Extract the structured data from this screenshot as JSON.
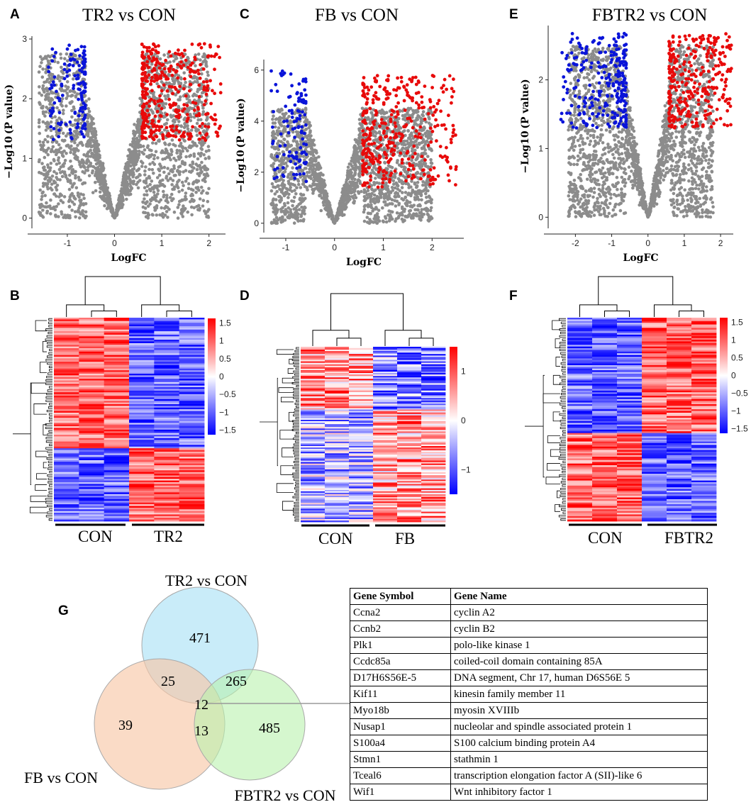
{
  "panel_letters": [
    "A",
    "B",
    "C",
    "D",
    "E",
    "F",
    "G"
  ],
  "chart_data": [
    {
      "type": "scatter",
      "panel": "A",
      "title": "TR2 vs CON",
      "xlabel": "LogFC",
      "ylabel": "−Log10 (P value)",
      "xlim": [
        -1.75,
        2.35
      ],
      "ylim": [
        -0.1,
        3.0
      ],
      "xticks": [
        -1,
        0,
        1,
        2
      ],
      "yticks": [
        0,
        1,
        2,
        3
      ],
      "series": [
        {
          "name": "down",
          "color": "#0a14d9",
          "x_range": [
            -1.4,
            -0.62
          ],
          "y_range": [
            1.3,
            2.9
          ],
          "points": 140
        },
        {
          "name": "not significant",
          "color": "#8c8c8c",
          "x_range": [
            -1.6,
            2.0
          ],
          "y_range": [
            0,
            2.9
          ],
          "points": 2200
        },
        {
          "name": "up",
          "color": "#e80a0a",
          "x_range": [
            0.58,
            2.25
          ],
          "y_range": [
            1.3,
            2.92
          ],
          "points": 360
        }
      ]
    },
    {
      "type": "scatter",
      "panel": "C",
      "title": "FB vs CON",
      "xlabel": "LogFC",
      "ylabel": "−Log10 (P value)",
      "xlim": [
        -1.45,
        2.65
      ],
      "ylim": [
        -0.2,
        6.3
      ],
      "xticks": [
        -1,
        0,
        1,
        2
      ],
      "yticks": [
        0,
        2,
        4,
        6
      ],
      "series": [
        {
          "name": "down",
          "color": "#0a14d9",
          "x_range": [
            -1.3,
            -0.58
          ],
          "y_range": [
            1.5,
            6.0
          ],
          "points": 110
        },
        {
          "name": "not significant",
          "color": "#8c8c8c",
          "x_range": [
            -1.3,
            2.0
          ],
          "y_range": [
            0,
            4.5
          ],
          "points": 2200
        },
        {
          "name": "up",
          "color": "#e80a0a",
          "x_range": [
            0.58,
            2.5
          ],
          "y_range": [
            1.4,
            5.8
          ],
          "points": 380
        }
      ]
    },
    {
      "type": "scatter",
      "panel": "E",
      "title": "FBTR2 vs CON",
      "xlabel": "LogFC",
      "ylabel": "−Log10 (P value)",
      "xlim": [
        -2.75,
        2.35
      ],
      "ylim": [
        -0.1,
        2.75
      ],
      "xticks": [
        -2,
        -1,
        0,
        1,
        2
      ],
      "yticks": [
        0,
        1,
        2
      ],
      "series": [
        {
          "name": "down",
          "color": "#0a14d9",
          "x_range": [
            -2.4,
            -0.6
          ],
          "y_range": [
            1.3,
            2.68
          ],
          "points": 260
        },
        {
          "name": "not significant",
          "color": "#8c8c8c",
          "x_range": [
            -2.2,
            1.8
          ],
          "y_range": [
            0,
            2.5
          ],
          "points": 2200
        },
        {
          "name": "up",
          "color": "#e80a0a",
          "x_range": [
            0.58,
            2.3
          ],
          "y_range": [
            1.3,
            2.68
          ],
          "points": 300
        }
      ]
    },
    {
      "type": "heatmap",
      "panel": "B",
      "groups": [
        "CON",
        "TR2"
      ],
      "colorbar_ticks": [
        "1.5",
        "1",
        "0.5",
        "0",
        "−0.5",
        "−1",
        "−1.5"
      ],
      "colormap": [
        "#0000ff",
        "#ffffff",
        "#ff0000"
      ],
      "range": [
        -1.5,
        1.5
      ],
      "top_block_fraction": 0.64
    },
    {
      "type": "heatmap",
      "panel": "D",
      "groups": [
        "CON",
        "FB"
      ],
      "colorbar_ticks": [
        "1",
        "0",
        "−1"
      ],
      "colormap": [
        "#0000ff",
        "#ffffff",
        "#ff0000"
      ],
      "range": [
        -1.5,
        1.5
      ],
      "top_block_fraction": 0.36
    },
    {
      "type": "heatmap",
      "panel": "F",
      "groups": [
        "CON",
        "FBTR2"
      ],
      "colorbar_ticks": [
        "1.5",
        "1",
        "0.5",
        "0",
        "−0.5",
        "−1",
        "−1.5"
      ],
      "colormap": [
        "#0000ff",
        "#ffffff",
        "#ff0000"
      ],
      "range": [
        -1.5,
        1.5
      ],
      "top_block_fraction": 0.57
    }
  ],
  "venn": {
    "sets": [
      "TR2 vs CON",
      "FB vs CON",
      "FBTR2 vs CON"
    ],
    "regions": {
      "tr2_only": "471",
      "fb_only": "39",
      "fbtr2_only": "485",
      "tr2_fb": "25",
      "tr2_fbtr2": "265",
      "fb_fbtr2": "13",
      "all": "12"
    },
    "colors": {
      "tr2": "#b7e6f7",
      "fb": "#f8c8a8",
      "fbtr2": "#b9f2ae"
    }
  },
  "gene_table": {
    "headers": [
      "Gene Symbol",
      "Gene Name"
    ],
    "rows": [
      [
        "Ccna2",
        "cyclin A2"
      ],
      [
        "Ccnb2",
        "cyclin B2"
      ],
      [
        "Plk1",
        "polo-like kinase 1"
      ],
      [
        "Ccdc85a",
        "coiled-coil domain containing 85A"
      ],
      [
        "D17H6S56E-5",
        "DNA segment, Chr 17, human D6S56E 5"
      ],
      [
        "Kif11",
        "kinesin family member 11"
      ],
      [
        "Myo18b",
        "myosin XVIIIb"
      ],
      [
        "Nusap1",
        "nucleolar and spindle associated protein 1"
      ],
      [
        "S100a4",
        "S100 calcium binding protein A4"
      ],
      [
        "Stmn1",
        "stathmin 1"
      ],
      [
        "Tceal6",
        "transcription elongation factor A (SII)-like 6"
      ],
      [
        "Wif1",
        "Wnt inhibitory factor 1"
      ]
    ]
  }
}
